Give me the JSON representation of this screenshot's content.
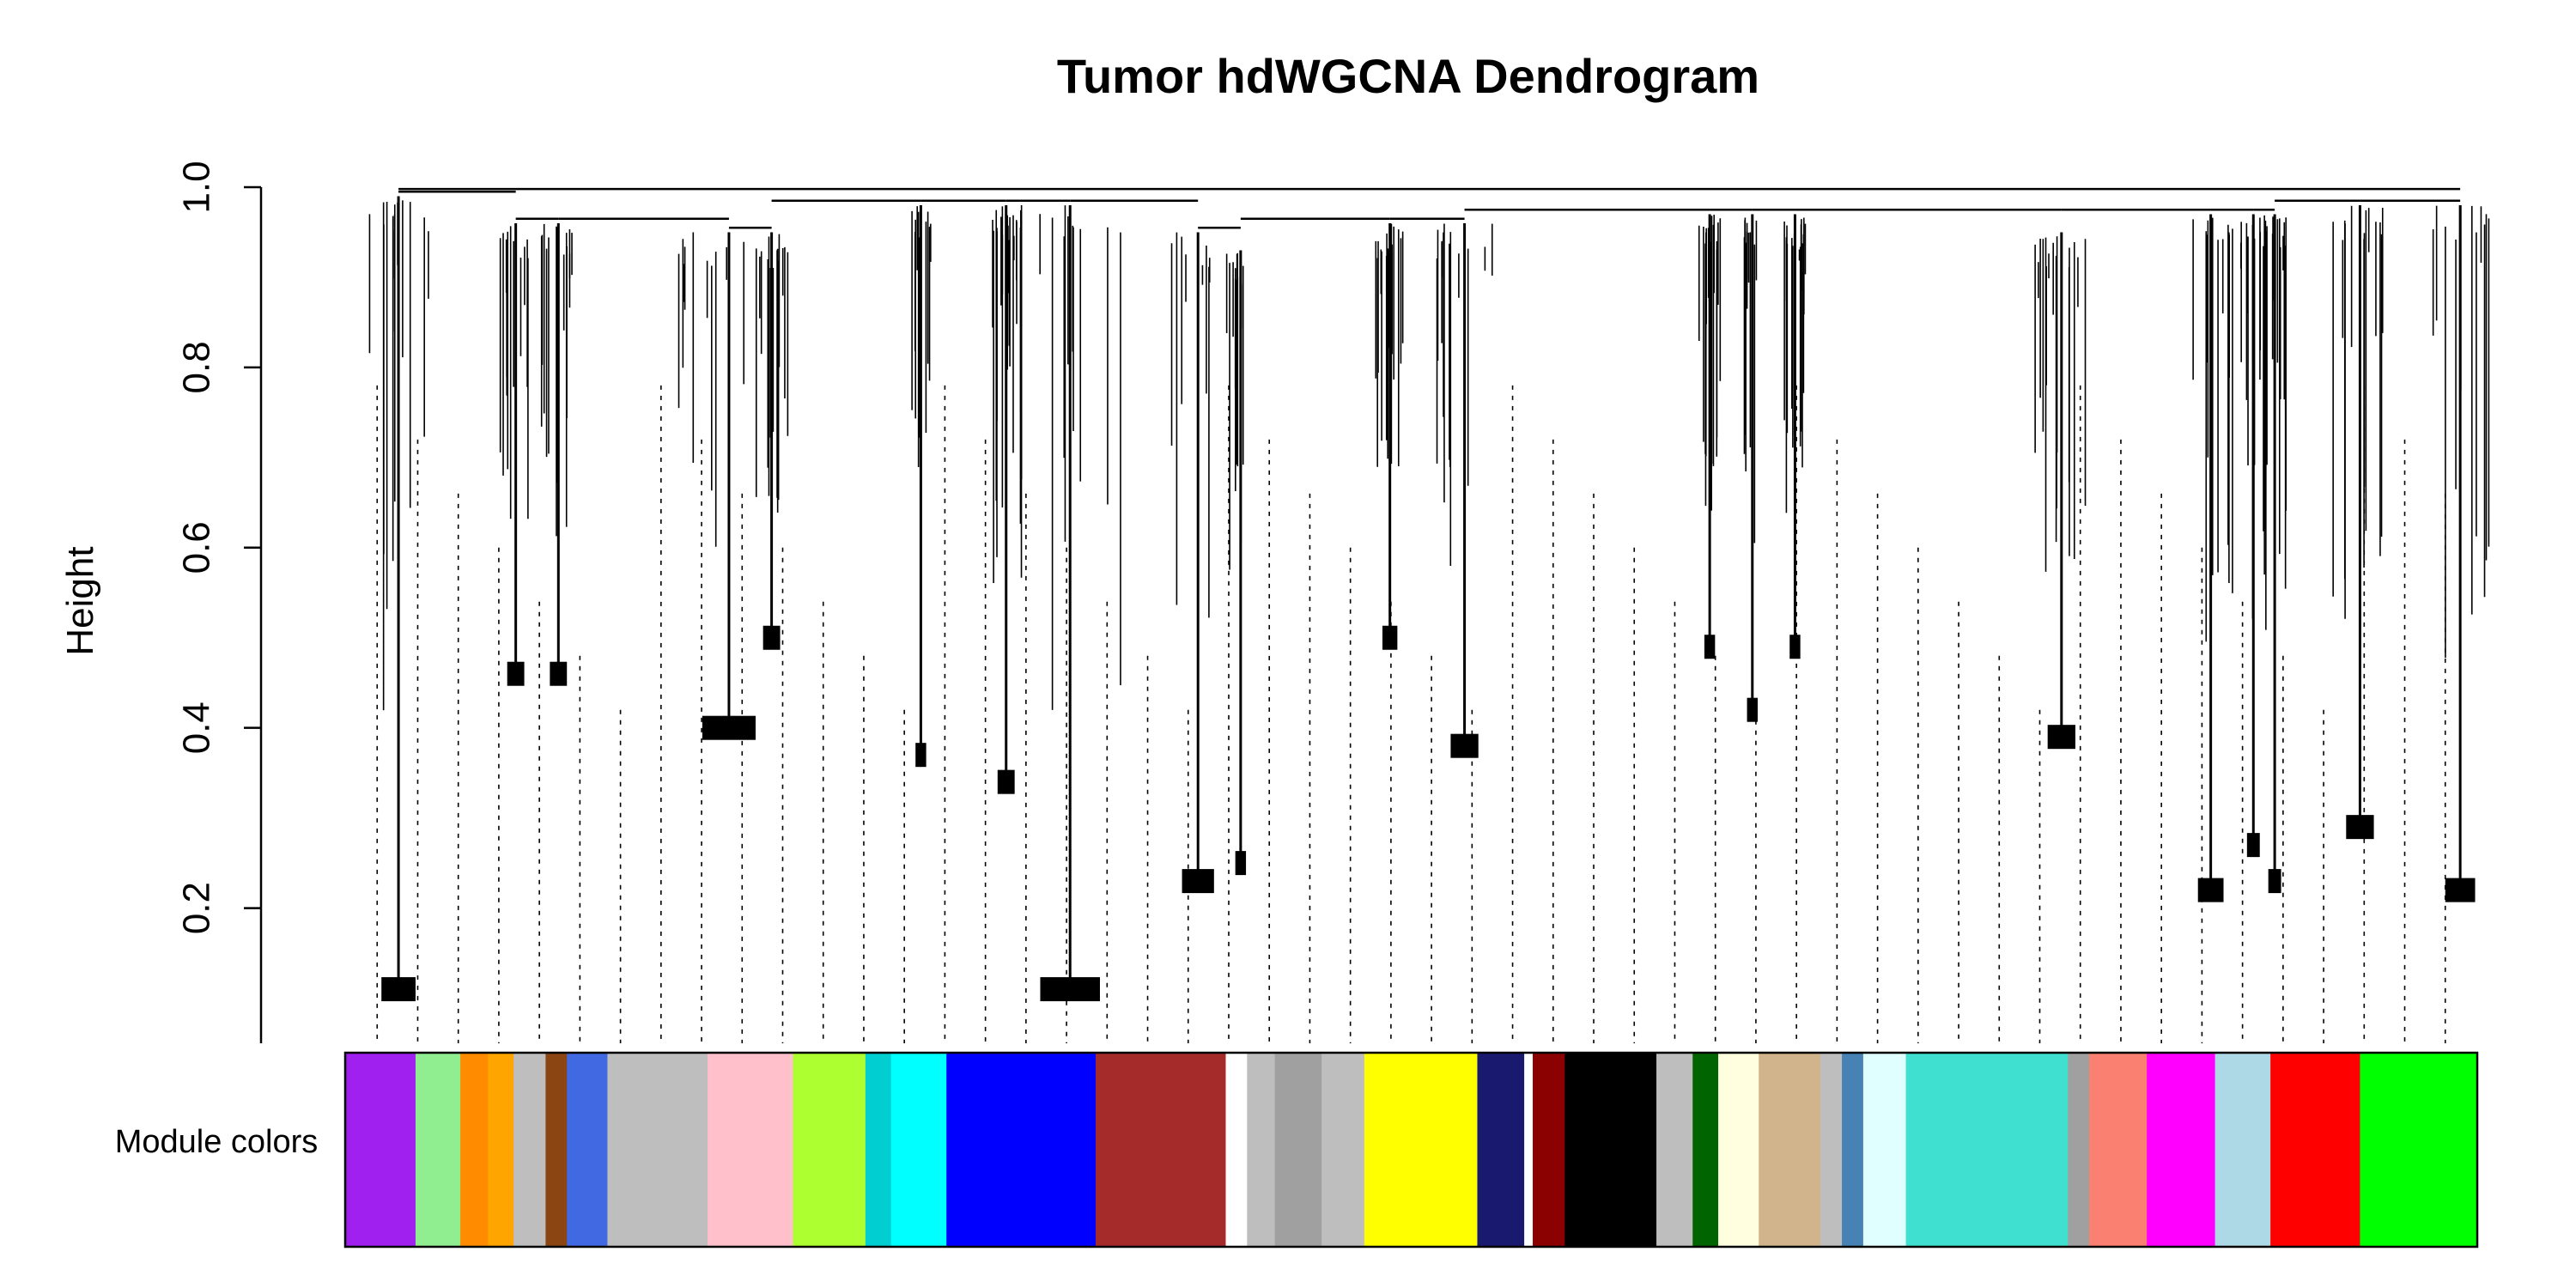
{
  "chart_data": {
    "type": "dendrogram",
    "title": "Tumor hdWGCNA Dendrogram",
    "ylabel": "Height",
    "xlabel": "",
    "ylim": [
      0.05,
      1.0
    ],
    "yticks": [
      0.2,
      0.4,
      0.6,
      0.8,
      1.0
    ],
    "ytick_labels": [
      "0.2",
      "0.4",
      "0.6",
      "0.8",
      "1.0"
    ],
    "color_bar_label": "Module colors",
    "x_range": [
      0,
      100
    ],
    "clusters": [
      {
        "x": 2.5,
        "w": 1.6,
        "top": 0.99,
        "bottom": 0.11,
        "blob": 0.11
      },
      {
        "x": 8.0,
        "w": 0.8,
        "top": 0.96,
        "bottom": 0.46,
        "blob": 0.46
      },
      {
        "x": 10.0,
        "w": 0.8,
        "top": 0.96,
        "bottom": 0.46,
        "blob": 0.46
      },
      {
        "x": 18.0,
        "w": 2.5,
        "top": 0.95,
        "bottom": 0.4,
        "blob": 0.4
      },
      {
        "x": 20.0,
        "w": 0.8,
        "top": 0.95,
        "bottom": 0.5,
        "blob": 0.5
      },
      {
        "x": 27.0,
        "w": 0.5,
        "top": 0.98,
        "bottom": 0.37,
        "blob": 0.37
      },
      {
        "x": 31.0,
        "w": 0.8,
        "top": 0.98,
        "bottom": 0.34,
        "blob": 0.34
      },
      {
        "x": 34.0,
        "w": 2.8,
        "top": 0.98,
        "bottom": 0.11,
        "blob": 0.11
      },
      {
        "x": 40.0,
        "w": 1.5,
        "top": 0.95,
        "bottom": 0.23,
        "blob": 0.23
      },
      {
        "x": 42.0,
        "w": 0.5,
        "top": 0.93,
        "bottom": 0.25,
        "blob": 0.25
      },
      {
        "x": 49.0,
        "w": 0.7,
        "top": 0.96,
        "bottom": 0.5,
        "blob": 0.5
      },
      {
        "x": 52.5,
        "w": 1.3,
        "top": 0.96,
        "bottom": 0.38,
        "blob": 0.38
      },
      {
        "x": 64.0,
        "w": 0.5,
        "top": 0.97,
        "bottom": 0.49,
        "blob": 0.49
      },
      {
        "x": 66.0,
        "w": 0.5,
        "top": 0.97,
        "bottom": 0.42,
        "blob": 0.42
      },
      {
        "x": 68.0,
        "w": 0.5,
        "top": 0.97,
        "bottom": 0.49,
        "blob": 0.49
      },
      {
        "x": 80.5,
        "w": 1.3,
        "top": 0.95,
        "bottom": 0.39,
        "blob": 0.39
      },
      {
        "x": 87.5,
        "w": 1.2,
        "top": 0.97,
        "bottom": 0.22,
        "blob": 0.22
      },
      {
        "x": 89.5,
        "w": 0.6,
        "top": 0.97,
        "bottom": 0.27,
        "blob": 0.27
      },
      {
        "x": 90.5,
        "w": 0.6,
        "top": 0.97,
        "bottom": 0.23,
        "blob": 0.23
      },
      {
        "x": 94.5,
        "w": 1.3,
        "top": 0.98,
        "bottom": 0.29,
        "blob": 0.29
      },
      {
        "x": 99.2,
        "w": 1.4,
        "top": 0.98,
        "bottom": 0.22,
        "blob": 0.22
      }
    ],
    "module_colors": [
      {
        "color": "#a020f0",
        "start": 0.0,
        "end": 3.3
      },
      {
        "color": "#90ee90",
        "start": 3.3,
        "end": 5.4
      },
      {
        "color": "#ff8c00",
        "start": 5.4,
        "end": 6.7
      },
      {
        "color": "#ffa500",
        "start": 6.7,
        "end": 7.9
      },
      {
        "color": "#bebebe",
        "start": 7.9,
        "end": 9.4
      },
      {
        "color": "#8b4513",
        "start": 9.4,
        "end": 10.4
      },
      {
        "color": "#4169e1",
        "start": 10.4,
        "end": 12.3
      },
      {
        "color": "#bebebe",
        "start": 12.3,
        "end": 17.0
      },
      {
        "color": "#ffc0cb",
        "start": 17.0,
        "end": 21.0
      },
      {
        "color": "#adff2f",
        "start": 21.0,
        "end": 24.4
      },
      {
        "color": "#00ced1",
        "start": 24.4,
        "end": 25.6
      },
      {
        "color": "#00ffff",
        "start": 25.6,
        "end": 28.2
      },
      {
        "color": "#0000ff",
        "start": 28.2,
        "end": 35.2
      },
      {
        "color": "#a52a2a",
        "start": 35.2,
        "end": 41.3
      },
      {
        "color": "#ffffff",
        "start": 41.3,
        "end": 42.3
      },
      {
        "color": "#bebebe",
        "start": 42.3,
        "end": 43.6
      },
      {
        "color": "#a0a0a0",
        "start": 43.6,
        "end": 45.8
      },
      {
        "color": "#bebebe",
        "start": 45.8,
        "end": 47.8
      },
      {
        "color": "#ffff00",
        "start": 47.8,
        "end": 53.1
      },
      {
        "color": "#191970",
        "start": 53.1,
        "end": 55.3
      },
      {
        "color": "#ffffff",
        "start": 55.3,
        "end": 55.7
      },
      {
        "color": "#8b0000",
        "start": 55.7,
        "end": 57.2
      },
      {
        "color": "#000000",
        "start": 57.2,
        "end": 61.5
      },
      {
        "color": "#bebebe",
        "start": 61.5,
        "end": 63.2
      },
      {
        "color": "#006400",
        "start": 63.2,
        "end": 64.4
      },
      {
        "color": "#ffffe0",
        "start": 64.4,
        "end": 66.3
      },
      {
        "color": "#d2b48c",
        "start": 66.3,
        "end": 69.2
      },
      {
        "color": "#bebebe",
        "start": 69.2,
        "end": 70.2
      },
      {
        "color": "#4682b4",
        "start": 70.2,
        "end": 71.2
      },
      {
        "color": "#e0ffff",
        "start": 71.2,
        "end": 73.2
      },
      {
        "color": "#40e0d0",
        "start": 73.2,
        "end": 80.8
      },
      {
        "color": "#a0a0a0",
        "start": 80.8,
        "end": 81.8
      },
      {
        "color": "#fa8072",
        "start": 81.8,
        "end": 84.5
      },
      {
        "color": "#ff00ff",
        "start": 84.5,
        "end": 87.7
      },
      {
        "color": "#add8e6",
        "start": 87.7,
        "end": 90.3
      },
      {
        "color": "#ff0000",
        "start": 90.3,
        "end": 94.5
      },
      {
        "color": "#00ff00",
        "start": 94.5,
        "end": 100.0
      }
    ]
  }
}
